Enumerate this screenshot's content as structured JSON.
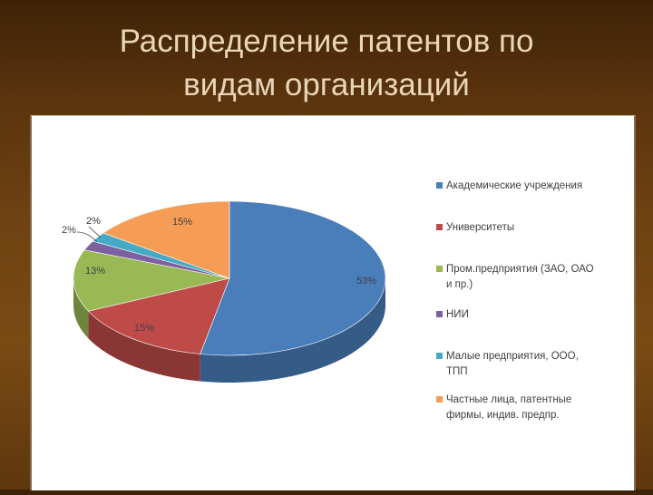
{
  "slide": {
    "title_line1": "Распределение патентов по",
    "title_line2": "видам организаций"
  },
  "chart_data": {
    "type": "pie",
    "title": "",
    "categories": [
      "Академические учреждения",
      "Университеты",
      "Пром.предприятия (ЗАО, ОАО и пр.)",
      "НИИ",
      "Малые предприятия, ООО, ТПП",
      "Частные лица, патентные фирмы, индив. предпр."
    ],
    "legend_lines": [
      [
        "Академические учреждения"
      ],
      [
        "Университеты"
      ],
      [
        "Пром.предприятия (ЗАО, ОАО",
        "и пр.)"
      ],
      [
        "НИИ"
      ],
      [
        "Малые предприятия, ООО,",
        "ТПП"
      ],
      [
        "Частные лица, патентные",
        "фирмы, индив. предпр."
      ]
    ],
    "values": [
      53,
      15,
      13,
      2,
      2,
      15
    ],
    "data_labels": [
      "53%",
      "15%",
      "13%",
      "2%",
      "2%",
      "15%"
    ],
    "colors": [
      "#4a7ebb",
      "#be4b48",
      "#98b954",
      "#7d60a0",
      "#46aac5",
      "#f59d56"
    ],
    "legend_position": "right",
    "style": "3d"
  }
}
